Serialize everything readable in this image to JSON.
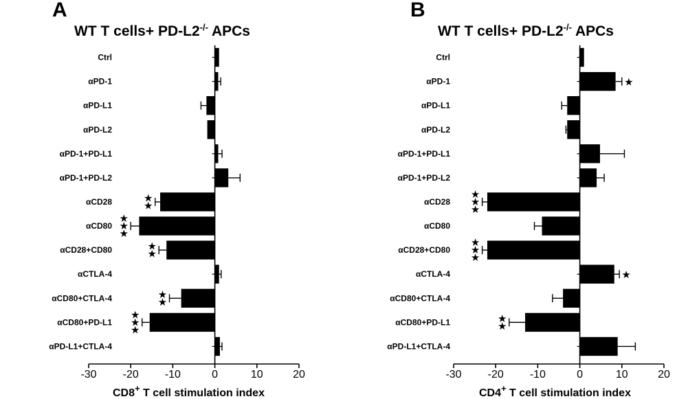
{
  "figure": {
    "panels": [
      "A",
      "B"
    ]
  },
  "chart_data": [
    {
      "type": "bar",
      "orientation": "horizontal",
      "panel": "A",
      "title": "WT T cells+ PD-L2",
      "title_sup": "-/-",
      "title_suffix": " APCs",
      "xlabel": "CD8",
      "xlabel_sup": "+",
      "xlabel_suffix": " T cell stimulation index",
      "xlim": [
        -30,
        20
      ],
      "xticks": [
        "-30",
        "-20",
        "-10",
        "0",
        "10",
        "20"
      ],
      "categories": [
        "Ctrl",
        "αPD-1",
        "αPD-L1",
        "αPD-L2",
        "αPD-1+PD-L1",
        "αPD-1+PD-L2",
        "αCD28",
        "αCD80",
        "αCD28+CD80",
        "αCTLA-4",
        "αCD80+CTLA-4",
        "αCD80+PD-L1",
        "αPD-L1+CTLA-4"
      ],
      "values": [
        1,
        0.8,
        -2,
        -1.8,
        0.8,
        3.2,
        -13,
        -18,
        -11.5,
        1,
        -8,
        -15.5,
        1.2
      ],
      "errors": [
        0,
        0.6,
        1.3,
        0,
        0.9,
        2.8,
        1.2,
        2,
        1.8,
        0.5,
        2.8,
        1.8,
        0.5
      ],
      "stars": [
        0,
        0,
        0,
        0,
        0,
        0,
        2,
        3,
        2,
        0,
        2,
        3,
        0
      ],
      "star_glyph": "★"
    },
    {
      "type": "bar",
      "orientation": "horizontal",
      "panel": "B",
      "title": "WT T cells+ PD-L2",
      "title_sup": "-/-",
      "title_suffix": " APCs",
      "xlabel": "CD4",
      "xlabel_sup": "+",
      "xlabel_suffix": " T cell stimulation index",
      "xlim": [
        -30,
        20
      ],
      "xticks": [
        "-30",
        "-20",
        "-10",
        "0",
        "10",
        "20"
      ],
      "categories": [
        "Ctrl",
        "αPD-1",
        "αPD-L1",
        "αPD-L2",
        "αPD-1+PD-L1",
        "αPD-1+PD-L2",
        "αCD28",
        "αCD80",
        "αCD28+CD80",
        "αCTLA-4",
        "αCD80+CTLA-4",
        "αCD80+PD-L1",
        "αPD-L1+CTLA-4"
      ],
      "values": [
        1,
        8.5,
        -3,
        -3,
        4.8,
        4,
        -22,
        -9,
        -22,
        8.2,
        -4,
        -13,
        9
      ],
      "errors": [
        0,
        1.5,
        1.3,
        0.3,
        5.8,
        1.8,
        1.2,
        1.8,
        1.2,
        1.2,
        2.5,
        3.8,
        4.2
      ],
      "stars": [
        0,
        1,
        0,
        0,
        0,
        0,
        3,
        0,
        3,
        1,
        0,
        2,
        0
      ],
      "star_glyph": "★"
    }
  ]
}
